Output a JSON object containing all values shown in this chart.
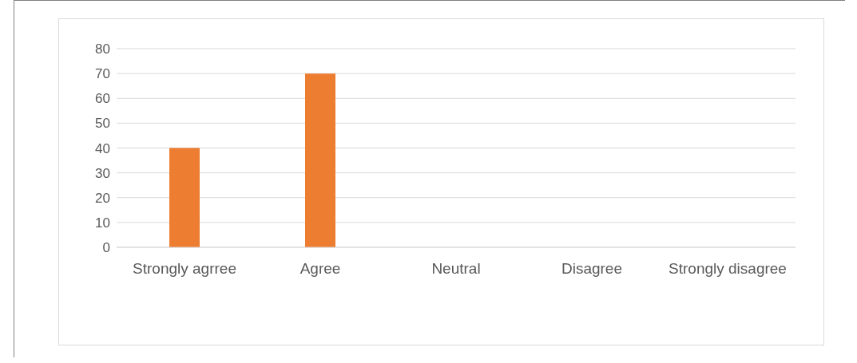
{
  "chart_data": {
    "type": "bar",
    "categories": [
      "Strongly agrree",
      "Agree",
      "Neutral",
      "Disagree",
      "Strongly disagree"
    ],
    "values": [
      40,
      70,
      0,
      0,
      0
    ],
    "color": "#ed7d31",
    "ylim": [
      0,
      80
    ],
    "yticks": [
      0,
      10,
      20,
      30,
      40,
      50,
      60,
      70,
      80
    ],
    "grid": "y",
    "legend": false
  }
}
